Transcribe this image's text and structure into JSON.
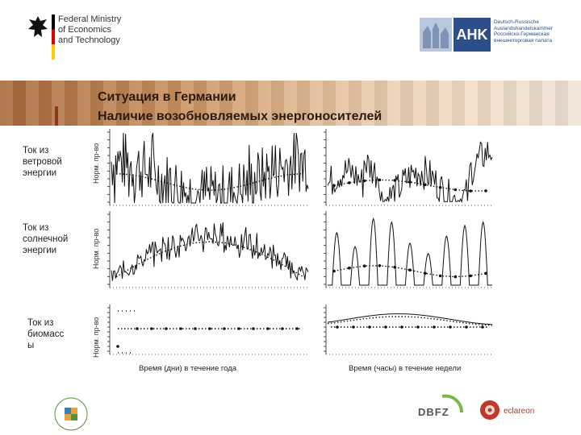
{
  "header": {
    "bmwi_text": "Federal Ministry\nof Economics\nand Technology",
    "ahk_letters": "AHK",
    "ahk_subtext": "Deutsch-Russische\nAuslandshandelskammer\nРоссийско-Германская\nвнешнеторговая палата"
  },
  "title": {
    "line1": "Ситуация в Германии",
    "line2": "Наличие возобновляемых энергоносителей"
  },
  "rows": [
    {
      "label": "Ток из\nветровой\nэнергии",
      "axis": "Норм. пр-во"
    },
    {
      "label": "Ток из\nсолнечной\nэнергии",
      "axis": "Норм. пр-во"
    },
    {
      "label": "Ток из\nбиомасс\nы",
      "axis": "Норм. пр-во"
    }
  ],
  "captions": {
    "year": "Время (дни) в течение года",
    "week": "Время (часы) в течение недели"
  },
  "footer": {
    "dbfz": "DBFZ",
    "eclareon": "eclareon"
  },
  "colors": {
    "banner_dark": "#a86a3c",
    "banner_light": "#efe3d6",
    "ahk_blue": "#2c4f8a",
    "accent": "#8b3a1f"
  }
}
